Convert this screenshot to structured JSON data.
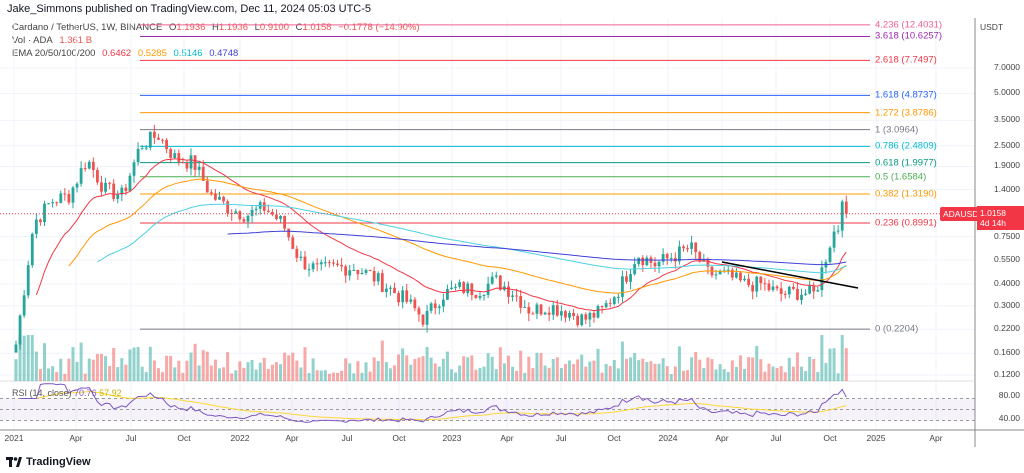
{
  "header": {
    "publisher": "Jake_Simmons published on TradingView.com, Dec 11, 2024 05:03 UTC-5"
  },
  "legend": {
    "symbol": "Cardano / TetherUS, 1W, BINANCE",
    "o_label": "O",
    "o": "1.1936",
    "h_label": "H",
    "h": "1.1936",
    "l_label": "L",
    "l": "0.9100",
    "c_label": "C",
    "c": "1.0158",
    "change": "−0.1778 (−14.90%)",
    "vol_label": "Vol · ADA",
    "vol": "1.361 B",
    "ema_label": "EMA 20/50/100/200",
    "ema20": "0.6462",
    "ema50": "0.5285",
    "ema100": "0.5146",
    "ema200": "0.4748"
  },
  "colors": {
    "up": "#26a69a",
    "down": "#ef5350",
    "ema20": "#f23645",
    "ema50": "#ff9800",
    "ema100": "#4dd0e1",
    "ema200": "#3f3fd8",
    "rsi": "#7e57c2",
    "rsi_ma": "#fdd835",
    "trendline": "#000000"
  },
  "price_axis": {
    "currency": "USDT",
    "labels": [
      "7.0000",
      "5.0000",
      "3.5000",
      "2.5000",
      "1.9000",
      "1.4000",
      "0.7500",
      "0.5500",
      "0.4000",
      "0.3000",
      "0.2200",
      "0.1600",
      "0.1200"
    ],
    "values": [
      7,
      5,
      3.5,
      2.5,
      1.9,
      1.4,
      0.75,
      0.55,
      0.4,
      0.3,
      0.22,
      0.16,
      0.12
    ],
    "scale": "log"
  },
  "current": {
    "symbol": "ADAUSDT",
    "price": "1.0158",
    "countdown": "4d 14h"
  },
  "fib": [
    {
      "label": "4.236 (12.4031)",
      "price": 12.4031,
      "color": "#f06292"
    },
    {
      "label": "3.618 (10.6257)",
      "price": 10.6257,
      "color": "#9c27b0"
    },
    {
      "label": "2.618 (7.7497)",
      "price": 7.7497,
      "color": "#f23645"
    },
    {
      "label": "1.618 (4.8737)",
      "price": 4.8737,
      "color": "#2962ff"
    },
    {
      "label": "1.272 (3.8786)",
      "price": 3.8786,
      "color": "#ff9800"
    },
    {
      "label": "1 (3.0964)",
      "price": 3.0964,
      "color": "#787b86"
    },
    {
      "label": "0.786 (2.4809)",
      "price": 2.4809,
      "color": "#00bcd4"
    },
    {
      "label": "0.618 (1.9977)",
      "price": 1.9977,
      "color": "#089981"
    },
    {
      "label": "0.5 (1.6584)",
      "price": 1.6584,
      "color": "#4caf50"
    },
    {
      "label": "0.382 (1.3190)",
      "price": 1.319,
      "color": "#ff9800"
    },
    {
      "label": "0.236 (0.8991)",
      "price": 0.8991,
      "color": "#f23645"
    },
    {
      "label": "0 (0.2204)",
      "price": 0.2204,
      "color": "#787b86"
    }
  ],
  "time_axis": [
    "2021",
    "Apr",
    "Jul",
    "Oct",
    "2022",
    "Apr",
    "Jul",
    "Oct",
    "2023",
    "Apr",
    "Jul",
    "Oct",
    "2024",
    "Apr",
    "Jul",
    "Oct",
    "2025",
    "Apr"
  ],
  "rsi": {
    "label": "RSI (14, close)",
    "value": "70.76",
    "ma": "57.92",
    "levels": [
      "80.00",
      "40.00"
    ]
  },
  "footer": {
    "brand": "TradingView"
  },
  "chart_data": {
    "type": "candlestick",
    "interval": "1W",
    "scale": "log",
    "x": [
      "2021-01",
      "2021-02",
      "2021-03",
      "2021-04",
      "2021-05",
      "2021-06",
      "2021-07",
      "2021-08",
      "2021-09",
      "2021-10",
      "2021-11",
      "2021-12",
      "2022-01",
      "2022-02",
      "2022-03",
      "2022-04",
      "2022-05",
      "2022-06",
      "2022-07",
      "2022-08",
      "2022-09",
      "2022-10",
      "2022-11",
      "2022-12",
      "2023-01",
      "2023-02",
      "2023-03",
      "2023-04",
      "2023-05",
      "2023-06",
      "2023-07",
      "2023-08",
      "2023-09",
      "2023-10",
      "2023-11",
      "2023-12",
      "2024-01",
      "2024-02",
      "2024-03",
      "2024-04",
      "2024-05",
      "2024-06",
      "2024-07",
      "2024-08",
      "2024-09",
      "2024-10",
      "2024-11",
      "2024-12"
    ],
    "approx_close": [
      0.18,
      0.9,
      1.2,
      1.3,
      2.1,
      1.4,
      1.3,
      2.5,
      2.9,
      2.1,
      2.0,
      1.3,
      1.1,
      1.0,
      1.1,
      0.9,
      0.55,
      0.48,
      0.5,
      0.5,
      0.45,
      0.38,
      0.32,
      0.25,
      0.35,
      0.38,
      0.37,
      0.42,
      0.36,
      0.28,
      0.3,
      0.28,
      0.25,
      0.28,
      0.38,
      0.6,
      0.52,
      0.58,
      0.65,
      0.46,
      0.45,
      0.4,
      0.4,
      0.35,
      0.36,
      0.35,
      0.78,
      1.0158
    ]
  }
}
